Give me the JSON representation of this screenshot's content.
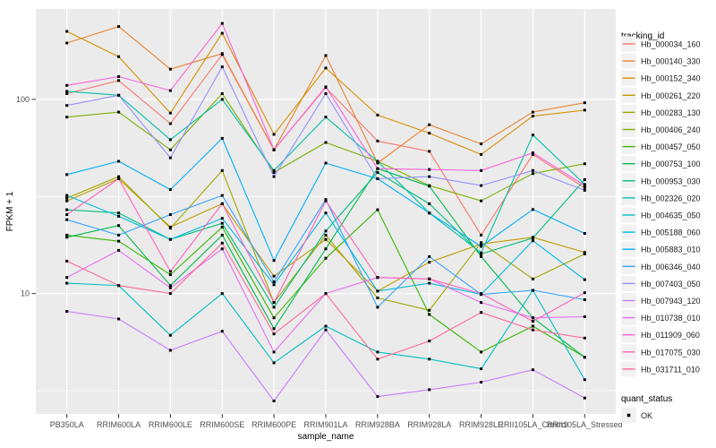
{
  "figure": {
    "background": "#FFFFFF",
    "panel_background": "#EBEBEB",
    "gridline_color": "#FFFFFF",
    "tick_color": "#333333",
    "tick_text_color": "#4D4D4D",
    "point_color": "#000000"
  },
  "chart_data": {
    "type": "line",
    "title": "",
    "xlabel": "sample_name",
    "ylabel": "FPKM + 1",
    "y_scale": "log10",
    "ylim": [
      2.4,
      292
    ],
    "y_ticks": [
      10,
      100
    ],
    "y_minor_ticks": [
      3.1623,
      31.623
    ],
    "grid": true,
    "legend_position": "right",
    "x_categories": [
      "PB350LA",
      "RRIM600LA",
      "RRIM600LE",
      "RRIM600SE",
      "RRIM600PE",
      "RRIM901LA",
      "RRIM928BA",
      "RRIM928LA",
      "RRIM928LE",
      "RRII105LA_Control",
      "RRII105LA_Stressed"
    ],
    "legend": {
      "title": "tracking_id"
    },
    "legend2": {
      "title": "quant_status",
      "items": [
        {
          "label": "OK",
          "marker": "black-square"
        }
      ]
    },
    "series": [
      {
        "name": "Hb_000034_160",
        "color": "#F8766D",
        "values": [
          107,
          125,
          75,
          170,
          55,
          115,
          61,
          54,
          20,
          52,
          35
        ]
      },
      {
        "name": "Hb_000140_330",
        "color": "#EA8331",
        "values": [
          195,
          237,
          143,
          172,
          55,
          168,
          47,
          74,
          59,
          86,
          96
        ]
      },
      {
        "name": "Hb_000152_340",
        "color": "#D89000",
        "values": [
          224,
          166,
          85,
          219,
          66,
          145,
          83,
          67,
          52,
          82,
          88
        ]
      },
      {
        "name": "Hb_000261_220",
        "color": "#C09B00",
        "values": [
          30,
          39,
          22,
          29,
          12.3,
          19,
          10.3,
          14.5,
          18,
          19.5,
          16.3
        ]
      },
      {
        "name": "Hb_000283_130",
        "color": "#A3A500",
        "values": [
          31,
          40,
          21.7,
          43,
          9,
          20,
          9.5,
          8.2,
          18.3,
          11.9,
          16
        ]
      },
      {
        "name": "Hb_000406_240",
        "color": "#7CAE00",
        "values": [
          81,
          86,
          55,
          107,
          42,
          60,
          48,
          36,
          30,
          41.5,
          46.6
        ]
      },
      {
        "name": "Hb_000457_050",
        "color": "#39B600",
        "values": [
          20,
          18.6,
          12.5,
          22,
          7.5,
          15.2,
          27,
          7.8,
          5,
          6.8,
          4.7
        ]
      },
      {
        "name": "Hb_000753_100",
        "color": "#00BB4E",
        "values": [
          19.5,
          22.4,
          11,
          20,
          6.6,
          17,
          44,
          35.7,
          15.5,
          7.5,
          4.7
        ]
      },
      {
        "name": "Hb_000953_030",
        "color": "#00BF7D",
        "values": [
          27,
          26,
          19,
          23,
          8.5,
          21,
          42,
          29,
          16,
          19.3,
          38.6
        ]
      },
      {
        "name": "Hb_002326_020",
        "color": "#00C1A3",
        "values": [
          110,
          105,
          62,
          100,
          43,
          81,
          48,
          26,
          16.2,
          65.5,
          36.5
        ]
      },
      {
        "name": "Hb_004635_050",
        "color": "#00BFC4",
        "values": [
          11.3,
          11,
          6.1,
          10,
          4.4,
          6.8,
          5,
          4.6,
          4.1,
          10.4,
          3.6
        ]
      },
      {
        "name": "Hb_005188_060",
        "color": "#00BAE0",
        "values": [
          32,
          25,
          19,
          24.4,
          11.1,
          26,
          10.3,
          11.3,
          9.9,
          18.7,
          11.8
        ]
      },
      {
        "name": "Hb_005883_010",
        "color": "#00B0F6",
        "values": [
          41,
          48,
          34.3,
          63,
          14.8,
          47,
          39,
          26,
          17.5,
          27.1,
          20.4
        ]
      },
      {
        "name": "Hb_006346_040",
        "color": "#35A2FF",
        "values": [
          24,
          20,
          25.5,
          32,
          11.5,
          30.5,
          8.5,
          15.5,
          9.9,
          10.4,
          9.3
        ]
      },
      {
        "name": "Hb_007403_050",
        "color": "#9590FF",
        "values": [
          93,
          105,
          50,
          147,
          40,
          107,
          39,
          40,
          36,
          43,
          34
        ]
      },
      {
        "name": "Hb_007943_120",
        "color": "#C77CFF",
        "values": [
          8.1,
          7.4,
          5.1,
          6.4,
          2.8,
          6.5,
          2.95,
          3.2,
          3.5,
          4.05,
          2.9
        ]
      },
      {
        "name": "Hb_010738_010",
        "color": "#E76BF3",
        "values": [
          12.1,
          16.7,
          10.7,
          17,
          5,
          10,
          12.1,
          11.9,
          9,
          7.5,
          7.6
        ]
      },
      {
        "name": "Hb_011909_060",
        "color": "#FA62DB",
        "values": [
          118,
          131,
          111,
          246,
          55,
          116,
          44,
          43.5,
          43,
          53,
          36
        ]
      },
      {
        "name": "Hb_017075_030",
        "color": "#FF62BC",
        "values": [
          25.5,
          39,
          13,
          29,
          9,
          30,
          12.1,
          11.9,
          10,
          7.2,
          10.1
        ]
      },
      {
        "name": "Hb_031711_010",
        "color": "#FF6A98",
        "values": [
          14.7,
          11,
          10,
          18.2,
          6.2,
          10,
          4.6,
          5.7,
          8,
          6.5,
          5.9
        ]
      }
    ]
  }
}
